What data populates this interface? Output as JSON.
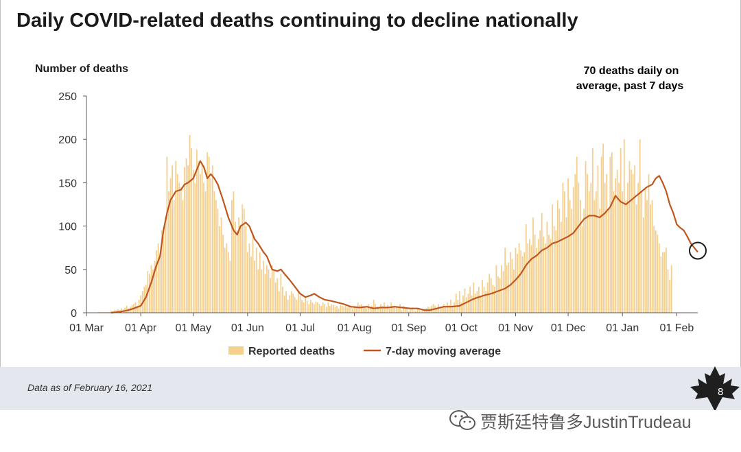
{
  "title": "Daily COVID-related deaths continuing to decline nationally",
  "footer_note": "Data as of February 16, 2021",
  "page_number": "8",
  "watermark": "贾斯廷特鲁多JustinTrudeau",
  "colors": {
    "bars": "#f5cf8e",
    "line": "#c0561c",
    "text": "#1a1a1a",
    "footer_bg": "#e4e8ee"
  },
  "chart_data": {
    "type": "bar",
    "ylabel": "Number of deaths",
    "ylim": [
      0,
      250
    ],
    "yticks": [
      0,
      50,
      100,
      150,
      200,
      250
    ],
    "xlim": [
      "2020-03-01",
      "2021-02-13"
    ],
    "xticks": [
      {
        "date": "2020-03-01",
        "label": "01 Mar"
      },
      {
        "date": "2020-04-01",
        "label": "01 Apr"
      },
      {
        "date": "2020-05-01",
        "label": "01 May"
      },
      {
        "date": "2020-06-01",
        "label": "01 Jun"
      },
      {
        "date": "2020-07-01",
        "label": "01 Jul"
      },
      {
        "date": "2020-08-01",
        "label": "01 Aug"
      },
      {
        "date": "2020-09-01",
        "label": "01 Sep"
      },
      {
        "date": "2020-10-01",
        "label": "01 Oct"
      },
      {
        "date": "2020-11-01",
        "label": "01 Nov"
      },
      {
        "date": "2020-12-01",
        "label": "01 Dec"
      },
      {
        "date": "2021-01-01",
        "label": "01 Jan"
      },
      {
        "date": "2021-02-01",
        "label": "01 Feb"
      }
    ],
    "series": [
      {
        "name": "Reported deaths",
        "type": "bar",
        "color": "#f5cf8e",
        "start": "2020-03-08",
        "values": [
          1,
          1,
          1,
          1,
          1,
          1,
          1,
          2,
          2,
          3,
          3,
          4,
          3,
          5,
          4,
          6,
          8,
          5,
          7,
          9,
          10,
          12,
          8,
          15,
          20,
          25,
          30,
          32,
          48,
          45,
          55,
          50,
          60,
          72,
          80,
          65,
          95,
          88,
          110,
          180,
          140,
          155,
          170,
          130,
          175,
          160,
          150,
          145,
          130,
          168,
          178,
          170,
          205,
          190,
          165,
          150,
          188,
          175,
          160,
          170,
          150,
          140,
          185,
          180,
          155,
          170,
          140,
          130,
          120,
          100,
          110,
          90,
          75,
          80,
          70,
          60,
          130,
          140,
          105,
          95,
          110,
          100,
          125,
          120,
          100,
          70,
          80,
          65,
          90,
          60,
          75,
          50,
          70,
          50,
          60,
          45,
          55,
          50,
          40,
          55,
          50,
          35,
          40,
          25,
          45,
          30,
          20,
          25,
          15,
          20,
          25,
          22,
          18,
          15,
          25,
          20,
          15,
          12,
          18,
          14,
          10,
          15,
          12,
          10,
          13,
          12,
          10,
          8,
          12,
          10,
          7,
          12,
          8,
          10,
          9,
          7,
          8,
          5,
          9,
          8,
          7,
          9,
          6,
          8,
          7,
          5,
          8,
          6,
          12,
          9,
          10,
          8,
          7,
          5,
          10,
          6,
          8,
          15,
          10,
          7,
          5,
          10,
          8,
          12,
          6,
          9,
          5,
          12,
          8,
          7,
          6,
          5,
          10,
          3,
          8,
          5,
          4,
          2,
          4,
          6,
          3,
          2,
          5,
          3,
          2,
          3,
          4,
          5,
          7,
          6,
          8,
          10,
          8,
          5,
          10,
          7,
          6,
          10,
          8,
          12,
          9,
          15,
          8,
          12,
          22,
          15,
          25,
          12,
          20,
          28,
          18,
          22,
          30,
          20,
          35,
          22,
          25,
          30,
          18,
          38,
          30,
          25,
          35,
          45,
          40,
          32,
          30,
          55,
          42,
          40,
          55,
          48,
          75,
          55,
          58,
          70,
          62,
          50,
          75,
          68,
          80,
          72,
          65,
          70,
          102,
          80,
          85,
          78,
          110,
          90,
          75,
          85,
          95,
          115,
          88,
          80,
          105,
          90,
          85,
          125,
          100,
          95,
          130,
          120,
          105,
          150,
          140,
          110,
          155,
          130,
          120,
          145,
          160,
          180,
          150,
          130,
          100,
          120,
          175,
          160,
          140,
          150,
          190,
          130,
          140,
          170,
          120,
          180,
          195,
          150,
          160,
          120,
          180,
          185,
          140,
          155,
          165,
          150,
          190,
          140,
          200,
          130,
          150,
          175,
          165,
          160,
          170,
          125,
          150,
          200,
          140,
          110,
          145,
          130,
          160,
          125,
          130,
          100,
          95,
          90,
          80,
          65,
          70,
          70,
          75,
          50,
          38,
          55
        ]
      },
      {
        "name": "7-day moving average",
        "type": "line",
        "color": "#c0561c",
        "points": [
          [
            "2020-03-15",
            0
          ],
          [
            "2020-03-20",
            1
          ],
          [
            "2020-03-25",
            3
          ],
          [
            "2020-03-28",
            5
          ],
          [
            "2020-04-01",
            8
          ],
          [
            "2020-04-04",
            18
          ],
          [
            "2020-04-07",
            35
          ],
          [
            "2020-04-10",
            55
          ],
          [
            "2020-04-12",
            65
          ],
          [
            "2020-04-14",
            95
          ],
          [
            "2020-04-16",
            115
          ],
          [
            "2020-04-18",
            130
          ],
          [
            "2020-04-21",
            140
          ],
          [
            "2020-04-24",
            142
          ],
          [
            "2020-04-26",
            148
          ],
          [
            "2020-04-28",
            150
          ],
          [
            "2020-05-01",
            155
          ],
          [
            "2020-05-03",
            165
          ],
          [
            "2020-05-05",
            175
          ],
          [
            "2020-05-07",
            168
          ],
          [
            "2020-05-09",
            155
          ],
          [
            "2020-05-11",
            160
          ],
          [
            "2020-05-13",
            155
          ],
          [
            "2020-05-15",
            148
          ],
          [
            "2020-05-18",
            130
          ],
          [
            "2020-05-21",
            110
          ],
          [
            "2020-05-24",
            95
          ],
          [
            "2020-05-26",
            90
          ],
          [
            "2020-05-28",
            100
          ],
          [
            "2020-05-31",
            104
          ],
          [
            "2020-06-02",
            100
          ],
          [
            "2020-06-05",
            85
          ],
          [
            "2020-06-07",
            80
          ],
          [
            "2020-06-10",
            70
          ],
          [
            "2020-06-12",
            65
          ],
          [
            "2020-06-15",
            50
          ],
          [
            "2020-06-18",
            48
          ],
          [
            "2020-06-20",
            50
          ],
          [
            "2020-06-22",
            45
          ],
          [
            "2020-06-25",
            38
          ],
          [
            "2020-06-28",
            30
          ],
          [
            "2020-07-01",
            22
          ],
          [
            "2020-07-04",
            18
          ],
          [
            "2020-07-07",
            20
          ],
          [
            "2020-07-09",
            22
          ],
          [
            "2020-07-12",
            18
          ],
          [
            "2020-07-15",
            15
          ],
          [
            "2020-07-18",
            14
          ],
          [
            "2020-07-22",
            12
          ],
          [
            "2020-07-26",
            10
          ],
          [
            "2020-07-30",
            7
          ],
          [
            "2020-08-04",
            6
          ],
          [
            "2020-08-08",
            7
          ],
          [
            "2020-08-12",
            5
          ],
          [
            "2020-08-16",
            6
          ],
          [
            "2020-08-20",
            6
          ],
          [
            "2020-08-24",
            7
          ],
          [
            "2020-08-28",
            6
          ],
          [
            "2020-09-02",
            5
          ],
          [
            "2020-09-06",
            5
          ],
          [
            "2020-09-10",
            3
          ],
          [
            "2020-09-13",
            3
          ],
          [
            "2020-09-17",
            5
          ],
          [
            "2020-09-21",
            7
          ],
          [
            "2020-09-25",
            7
          ],
          [
            "2020-09-30",
            8
          ],
          [
            "2020-10-04",
            12
          ],
          [
            "2020-10-08",
            16
          ],
          [
            "2020-10-11",
            18
          ],
          [
            "2020-10-14",
            20
          ],
          [
            "2020-10-18",
            22
          ],
          [
            "2020-10-22",
            25
          ],
          [
            "2020-10-26",
            28
          ],
          [
            "2020-10-29",
            32
          ],
          [
            "2020-11-01",
            38
          ],
          [
            "2020-11-04",
            45
          ],
          [
            "2020-11-07",
            55
          ],
          [
            "2020-11-10",
            62
          ],
          [
            "2020-11-13",
            66
          ],
          [
            "2020-11-16",
            72
          ],
          [
            "2020-11-19",
            75
          ],
          [
            "2020-11-22",
            80
          ],
          [
            "2020-11-25",
            82
          ],
          [
            "2020-11-28",
            85
          ],
          [
            "2020-12-01",
            88
          ],
          [
            "2020-12-04",
            92
          ],
          [
            "2020-12-07",
            100
          ],
          [
            "2020-12-10",
            108
          ],
          [
            "2020-12-13",
            112
          ],
          [
            "2020-12-16",
            112
          ],
          [
            "2020-12-19",
            110
          ],
          [
            "2020-12-22",
            115
          ],
          [
            "2020-12-25",
            122
          ],
          [
            "2020-12-28",
            135
          ],
          [
            "2020-12-31",
            128
          ],
          [
            "2021-01-03",
            125
          ],
          [
            "2021-01-06",
            130
          ],
          [
            "2021-01-09",
            135
          ],
          [
            "2021-01-12",
            140
          ],
          [
            "2021-01-15",
            145
          ],
          [
            "2021-01-18",
            148
          ],
          [
            "2021-01-20",
            155
          ],
          [
            "2021-01-22",
            158
          ],
          [
            "2021-01-24",
            150
          ],
          [
            "2021-01-26",
            140
          ],
          [
            "2021-01-28",
            125
          ],
          [
            "2021-01-30",
            115
          ],
          [
            "2021-02-01",
            102
          ],
          [
            "2021-02-03",
            98
          ],
          [
            "2021-02-05",
            95
          ],
          [
            "2021-02-07",
            88
          ],
          [
            "2021-02-09",
            80
          ],
          [
            "2021-02-11",
            75
          ],
          [
            "2021-02-13",
            70
          ]
        ]
      }
    ],
    "legend": {
      "position": "bottom-center",
      "items": [
        "Reported deaths",
        "7-day moving average"
      ]
    },
    "annotation": {
      "text_line1": "70 deaths daily on",
      "text_line2": "average, past 7 days",
      "target": [
        "2021-02-13",
        70
      ]
    },
    "grid": false
  }
}
